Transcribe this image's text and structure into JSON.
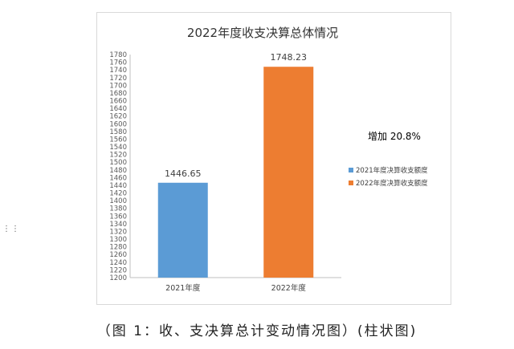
{
  "chart_data": {
    "type": "bar",
    "title": "2022年度收支决算总体情况",
    "categories": [
      "2021年度",
      "2022年度"
    ],
    "values": [
      1446.65,
      1748.23
    ],
    "value_labels": [
      "1446.65",
      "1748.23"
    ],
    "series": [
      {
        "name": "2021年度决算收支额度",
        "color": "#5b9bd5"
      },
      {
        "name": "2022年度决算收支额度",
        "color": "#ed7d31"
      }
    ],
    "ylim": [
      1200,
      1780
    ],
    "ytick_step": 20,
    "grid": false,
    "legend_position": "right",
    "annotation": "增加 20.8%"
  },
  "caption": "（图 1：收、支决算总计变动情况图）(柱状图)"
}
